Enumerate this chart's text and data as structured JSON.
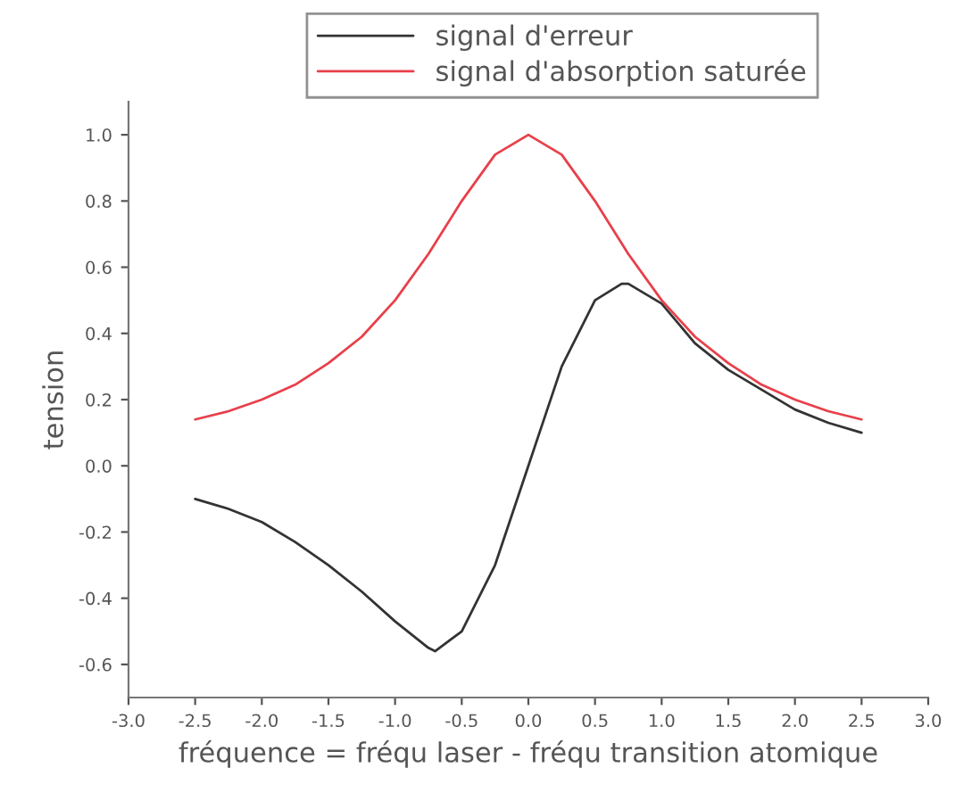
{
  "chart_data": {
    "type": "line",
    "xlabel": "fréquence = fréqu laser - fréqu transition atomique",
    "ylabel": "tension",
    "xlim": [
      -3.0,
      3.0
    ],
    "xticks": [
      {
        "value": -3.0,
        "label": "-3.0"
      },
      {
        "value": -2.5,
        "label": "-2.5"
      },
      {
        "value": -2.0,
        "label": "-2.0"
      },
      {
        "value": -1.5,
        "label": "-1.5"
      },
      {
        "value": -1.0,
        "label": "-1.0"
      },
      {
        "value": -0.5,
        "label": "-0.5"
      },
      {
        "value": 0.0,
        "label": "0.0"
      },
      {
        "value": 0.5,
        "label": "0.5"
      },
      {
        "value": 1.0,
        "label": "1.0"
      },
      {
        "value": 1.5,
        "label": "1.5"
      },
      {
        "value": 2.0,
        "label": "2.0"
      },
      {
        "value": 2.5,
        "label": "2.5"
      },
      {
        "value": 3.0,
        "label": "3.0"
      }
    ],
    "ylim": [
      -0.7,
      1.1
    ],
    "yticks": [
      {
        "value": -0.6,
        "label": "-0.6"
      },
      {
        "value": -0.4,
        "label": "-0.4"
      },
      {
        "value": -0.2,
        "label": "-0.2"
      },
      {
        "value": 0.0,
        "label": "0.0"
      },
      {
        "value": 0.2,
        "label": "0.2"
      },
      {
        "value": 0.4,
        "label": "0.4"
      },
      {
        "value": 0.6,
        "label": "0.6"
      },
      {
        "value": 0.8,
        "label": "0.8"
      },
      {
        "value": 1.0,
        "label": "1.0"
      }
    ],
    "legend": "top",
    "grid": false,
    "line_style": "solid",
    "marker": "none",
    "series": [
      {
        "name": "signal d'erreur",
        "color": "#333333",
        "x": [
          -2.5,
          -2.25,
          -2.0,
          -1.75,
          -1.5,
          -1.25,
          -1.0,
          -0.75,
          -0.7,
          -0.5,
          -0.25,
          0.0,
          0.25,
          0.5,
          0.7,
          0.75,
          1.0,
          1.25,
          1.5,
          1.75,
          2.0,
          2.25,
          2.5
        ],
        "values": [
          -0.1,
          -0.13,
          -0.17,
          -0.23,
          -0.3,
          -0.38,
          -0.47,
          -0.55,
          -0.56,
          -0.5,
          -0.3,
          0.0,
          0.3,
          0.5,
          0.55,
          0.55,
          0.49,
          0.37,
          0.29,
          0.23,
          0.17,
          0.13,
          0.1
        ]
      },
      {
        "name": "signal d'absorption saturée",
        "color": "#e8404a",
        "x": [
          -2.5,
          -2.25,
          -2.0,
          -1.75,
          -1.5,
          -1.25,
          -1.0,
          -0.75,
          -0.5,
          -0.25,
          0.0,
          0.25,
          0.5,
          0.75,
          1.0,
          1.25,
          1.5,
          1.75,
          2.0,
          2.25,
          2.5
        ],
        "values": [
          0.14,
          0.165,
          0.2,
          0.245,
          0.31,
          0.39,
          0.5,
          0.64,
          0.8,
          0.94,
          1.0,
          0.94,
          0.8,
          0.64,
          0.5,
          0.39,
          0.31,
          0.245,
          0.2,
          0.165,
          0.14
        ]
      }
    ]
  }
}
